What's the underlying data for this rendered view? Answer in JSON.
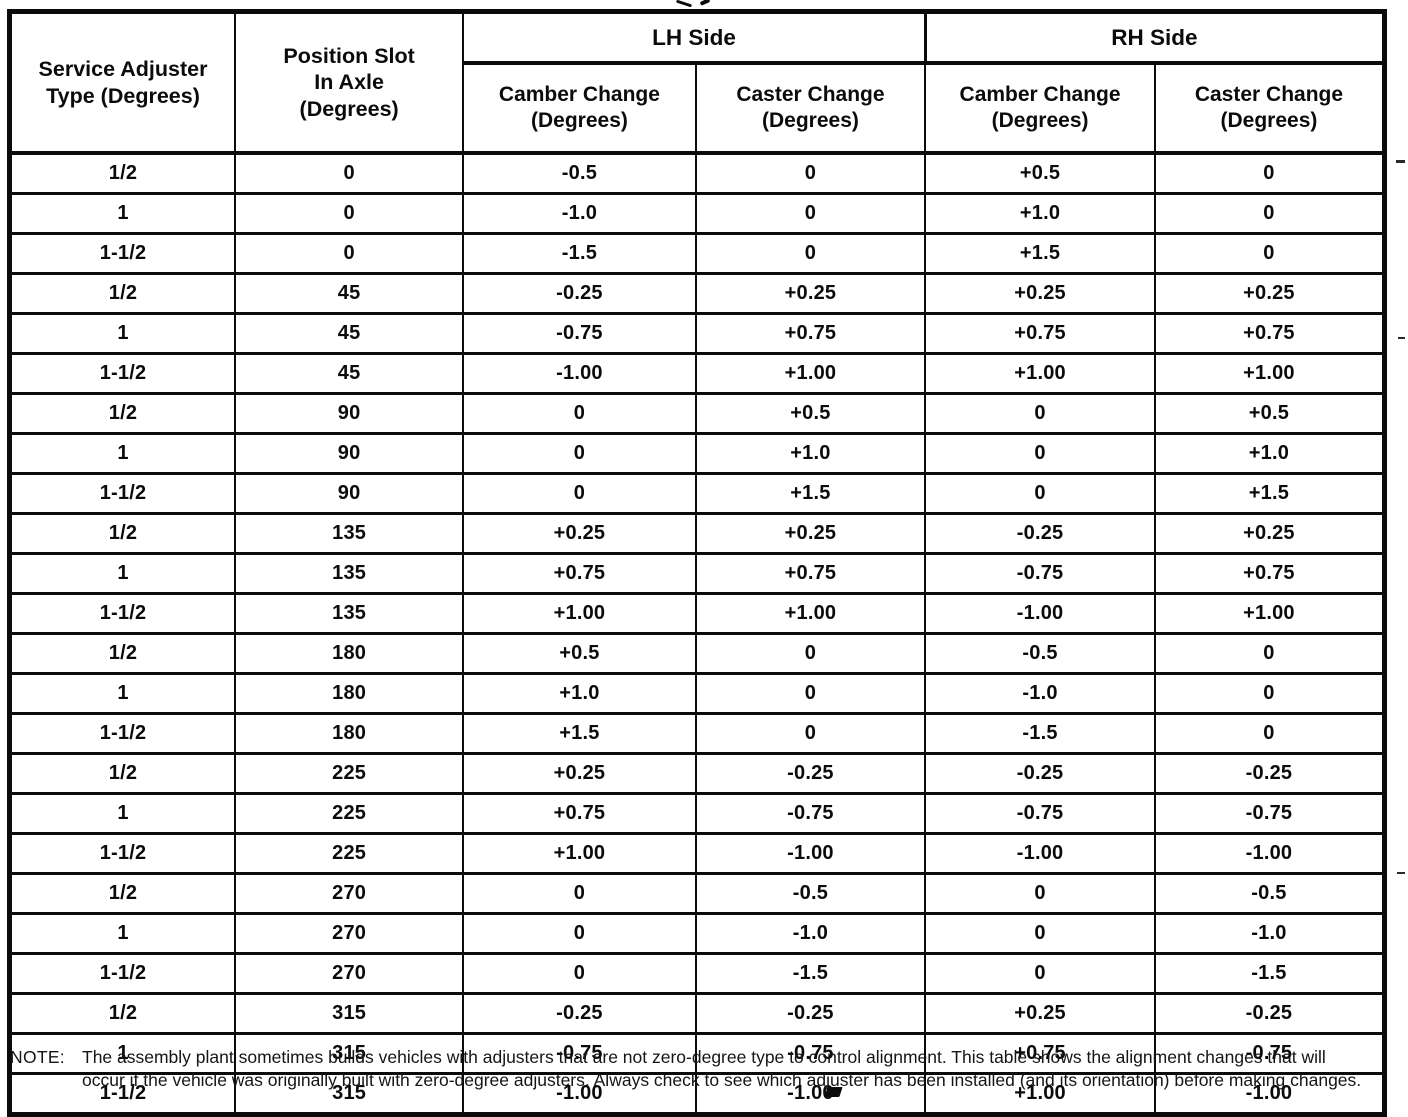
{
  "colors": {
    "ink": "#0b0b0b",
    "paper": "#ffffff"
  },
  "table": {
    "header": {
      "service_adjuster": "Service Adjuster\nType (Degrees)",
      "position_slot": "Position Slot\nIn Axle\n(Degrees)",
      "lh_side": "LH Side",
      "rh_side": "RH Side",
      "camber_change": "Camber Change\n(Degrees)",
      "caster_change": "Caster Change\n(Degrees)"
    },
    "rows": [
      [
        "1/2",
        "0",
        "-0.5",
        "0",
        "+0.5",
        "0"
      ],
      [
        "1",
        "0",
        "-1.0",
        "0",
        "+1.0",
        "0"
      ],
      [
        "1-1/2",
        "0",
        "-1.5",
        "0",
        "+1.5",
        "0"
      ],
      [
        "1/2",
        "45",
        "-0.25",
        "+0.25",
        "+0.25",
        "+0.25"
      ],
      [
        "1",
        "45",
        "-0.75",
        "+0.75",
        "+0.75",
        "+0.75"
      ],
      [
        "1-1/2",
        "45",
        "-1.00",
        "+1.00",
        "+1.00",
        "+1.00"
      ],
      [
        "1/2",
        "90",
        "0",
        "+0.5",
        "0",
        "+0.5"
      ],
      [
        "1",
        "90",
        "0",
        "+1.0",
        "0",
        "+1.0"
      ],
      [
        "1-1/2",
        "90",
        "0",
        "+1.5",
        "0",
        "+1.5"
      ],
      [
        "1/2",
        "135",
        "+0.25",
        "+0.25",
        "-0.25",
        "+0.25"
      ],
      [
        "1",
        "135",
        "+0.75",
        "+0.75",
        "-0.75",
        "+0.75"
      ],
      [
        "1-1/2",
        "135",
        "+1.00",
        "+1.00",
        "-1.00",
        "+1.00"
      ],
      [
        "1/2",
        "180",
        "+0.5",
        "0",
        "-0.5",
        "0"
      ],
      [
        "1",
        "180",
        "+1.0",
        "0",
        "-1.0",
        "0"
      ],
      [
        "1-1/2",
        "180",
        "+1.5",
        "0",
        "-1.5",
        "0"
      ],
      [
        "1/2",
        "225",
        "+0.25",
        "-0.25",
        "-0.25",
        "-0.25"
      ],
      [
        "1",
        "225",
        "+0.75",
        "-0.75",
        "-0.75",
        "-0.75"
      ],
      [
        "1-1/2",
        "225",
        "+1.00",
        "-1.00",
        "-1.00",
        "-1.00"
      ],
      [
        "1/2",
        "270",
        "0",
        "-0.5",
        "0",
        "-0.5"
      ],
      [
        "1",
        "270",
        "0",
        "-1.0",
        "0",
        "-1.0"
      ],
      [
        "1-1/2",
        "270",
        "0",
        "-1.5",
        "0",
        "-1.5"
      ],
      [
        "1/2",
        "315",
        "-0.25",
        "-0.25",
        "+0.25",
        "-0.25"
      ],
      [
        "1",
        "315",
        "-0.75",
        "-0.75",
        "+0.75",
        "-0.75"
      ],
      [
        "1-1/2",
        "315",
        "-1.00",
        "-1.00",
        "+1.00",
        "-1.00"
      ]
    ]
  },
  "note": {
    "label": "NOTE:",
    "text": "The assembly plant sometimes builds vehicles with adjusters that are not zero-degree type to control alignment. This table shows the alignment changes that will occur if the vehicle was originally built with zero-degree adjusters. Always check to see which adjuster has been installed (and its orientation) before making changes."
  }
}
